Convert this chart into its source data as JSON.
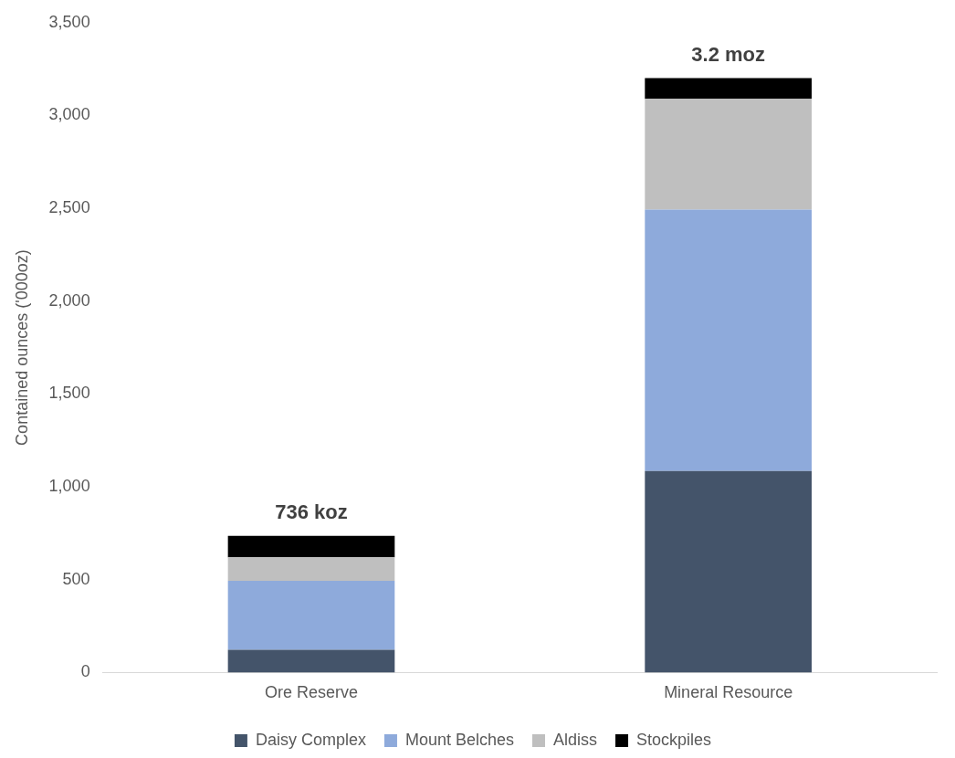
{
  "chart_data": {
    "type": "bar",
    "stacked": true,
    "ylabel": "Contained ounces ('000oz)",
    "categories": [
      "Ore Reserve",
      "Mineral Resource"
    ],
    "series": [
      {
        "name": "Daisy Complex",
        "color": "#44546a",
        "values": [
          122,
          1085
        ]
      },
      {
        "name": "Mount Belches",
        "color": "#8eaadb",
        "values": [
          372,
          1408
        ]
      },
      {
        "name": "Aldiss",
        "color": "#bfbfbf",
        "values": [
          127,
          596
        ]
      },
      {
        "name": "Stockpiles",
        "color": "#000000",
        "values": [
          115,
          112
        ]
      }
    ],
    "annotations": [
      {
        "text": "736 koz",
        "x": "Ore Reserve",
        "y": 736
      },
      {
        "text": "3.2 moz",
        "x": "Mineral Resource",
        "y": 3201
      }
    ],
    "ylim": [
      0,
      3500
    ],
    "yticks": [
      {
        "value": 0,
        "label": "0"
      },
      {
        "value": 500,
        "label": "500"
      },
      {
        "value": 1000,
        "label": "1,000"
      },
      {
        "value": 1500,
        "label": "1,500"
      },
      {
        "value": 2000,
        "label": "2,000"
      },
      {
        "value": 2500,
        "label": "2,500"
      },
      {
        "value": 3000,
        "label": "3,000"
      },
      {
        "value": 3500,
        "label": "3,500"
      }
    ],
    "grid": false,
    "legend": "bottom"
  }
}
